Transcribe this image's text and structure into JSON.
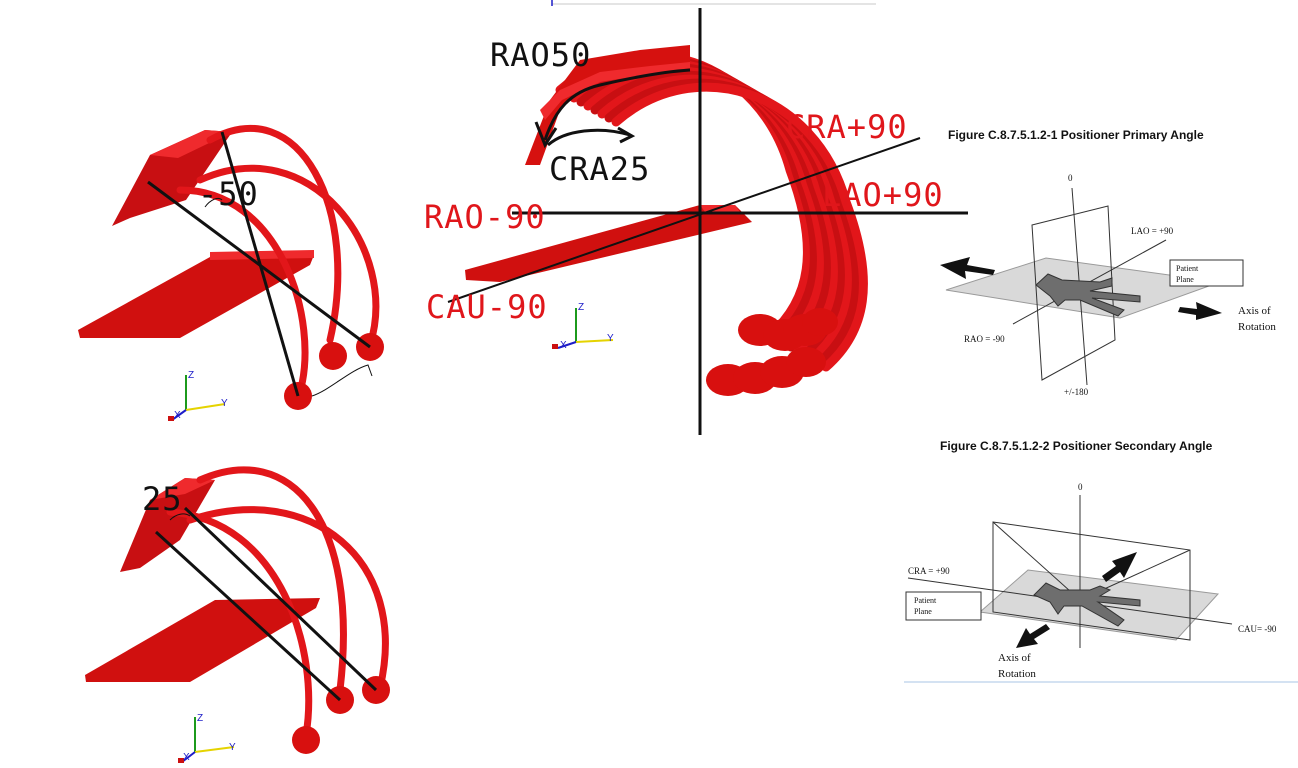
{
  "colors": {
    "arm": "#e2161a",
    "arm_dark": "#b50d10",
    "text_red": "#e0161b",
    "axis_x": "#1d1dc8",
    "axis_y": "#e5d300",
    "axis_z": "#1c9a1c",
    "plane": "#d9d9d9"
  },
  "top_left": {
    "angle_label": "-50",
    "axes": {
      "x": "X",
      "y": "Y",
      "z": "Z"
    }
  },
  "bottom_left": {
    "angle_label": "25",
    "axes": {
      "x": "X",
      "y": "Y",
      "z": "Z"
    }
  },
  "center": {
    "rao50": "RAO50",
    "cra25": "CRA25",
    "cra_pos": "CRA+90",
    "lao_pos": "LAO+90",
    "rao_neg": "RAO-90",
    "cau_neg": "CAU-90",
    "axes": {
      "x": "X",
      "y": "Y",
      "z": "Z"
    }
  },
  "fig1": {
    "caption": "Figure C.8.7.5.1.2-1 Positioner Primary Angle",
    "zero": "0",
    "lao": "LAO = +90",
    "rao": "RAO = -90",
    "bottom": "+/-180",
    "patient": "Patient",
    "plane": "Plane",
    "axis_of": "Axis of",
    "rotation": "Rotation"
  },
  "fig2": {
    "caption": "Figure C.8.7.5.1.2-2 Positioner Secondary Angle",
    "zero": "0",
    "cra": "CRA = +90",
    "cau": "CAU= -90",
    "patient": "Patient",
    "plane": "Plane",
    "axis_of": "Axis of",
    "rotation": "Rotation"
  }
}
